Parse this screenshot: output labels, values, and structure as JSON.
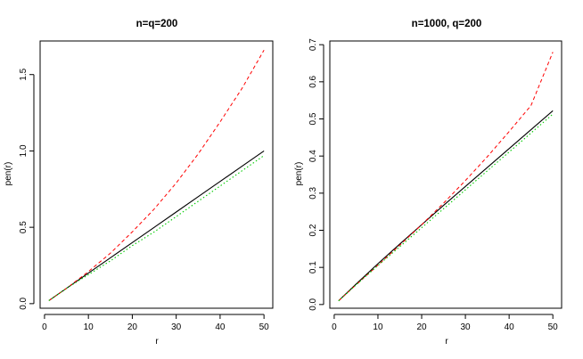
{
  "chart_data": [
    {
      "type": "line",
      "title": "n=q=200",
      "xlabel": "r",
      "ylabel": "pen(r)",
      "xlim": [
        -1,
        52
      ],
      "ylim": [
        -0.03,
        1.72
      ],
      "xticks": [
        0,
        10,
        20,
        30,
        40,
        50
      ],
      "yticks": [
        0.0,
        0.5,
        1.0,
        1.5
      ],
      "ytick_labels": [
        "0.0",
        "0.5",
        "1.0",
        "1.5"
      ],
      "grid": false,
      "series": [
        {
          "style": "solid",
          "color": "#000000",
          "x": [
            1,
            5,
            10,
            15,
            20,
            25,
            30,
            35,
            40,
            45,
            50
          ],
          "y": [
            0.02,
            0.1,
            0.2,
            0.3,
            0.4,
            0.5,
            0.6,
            0.7,
            0.8,
            0.9,
            1.0
          ]
        },
        {
          "style": "dashed",
          "color": "#ff0000",
          "x": [
            1,
            5,
            10,
            15,
            20,
            25,
            30,
            35,
            40,
            45,
            50
          ],
          "y": [
            0.02,
            0.1,
            0.21,
            0.33,
            0.47,
            0.62,
            0.79,
            0.98,
            1.19,
            1.41,
            1.66
          ]
        },
        {
          "style": "dotted",
          "color": "#00cc00",
          "x": [
            1,
            5,
            10,
            15,
            20,
            25,
            30,
            35,
            40,
            45,
            50
          ],
          "y": [
            0.02,
            0.1,
            0.19,
            0.28,
            0.38,
            0.47,
            0.57,
            0.67,
            0.77,
            0.87,
            0.97
          ]
        }
      ]
    },
    {
      "type": "line",
      "title": "n=1000, q=200",
      "xlabel": "r",
      "ylabel": "pen(r)",
      "xlim": [
        -1,
        52
      ],
      "ylim": [
        -0.01,
        0.71
      ],
      "xticks": [
        0,
        10,
        20,
        30,
        40,
        50
      ],
      "yticks": [
        0.0,
        0.1,
        0.2,
        0.3,
        0.4,
        0.5,
        0.6,
        0.7
      ],
      "ytick_labels": [
        "0.0",
        "0.1",
        "0.2",
        "0.3",
        "0.4",
        "0.5",
        "0.6",
        "0.7"
      ],
      "grid": false,
      "series": [
        {
          "style": "solid",
          "color": "#000000",
          "x": [
            1,
            5,
            10,
            15,
            20,
            25,
            30,
            35,
            40,
            45,
            50
          ],
          "y": [
            0.01,
            0.055,
            0.11,
            0.163,
            0.215,
            0.267,
            0.318,
            0.369,
            0.42,
            0.471,
            0.522
          ]
        },
        {
          "style": "dashed",
          "color": "#ff0000",
          "x": [
            1,
            5,
            10,
            15,
            20,
            25,
            30,
            35,
            40,
            45,
            50
          ],
          "y": [
            0.01,
            0.053,
            0.106,
            0.16,
            0.215,
            0.273,
            0.334,
            0.398,
            0.466,
            0.536,
            0.68
          ]
        },
        {
          "style": "dotted",
          "color": "#00cc00",
          "x": [
            1,
            5,
            10,
            15,
            20,
            25,
            30,
            35,
            40,
            45,
            50
          ],
          "y": [
            0.01,
            0.053,
            0.105,
            0.156,
            0.207,
            0.258,
            0.309,
            0.36,
            0.411,
            0.462,
            0.513
          ]
        }
      ]
    }
  ]
}
